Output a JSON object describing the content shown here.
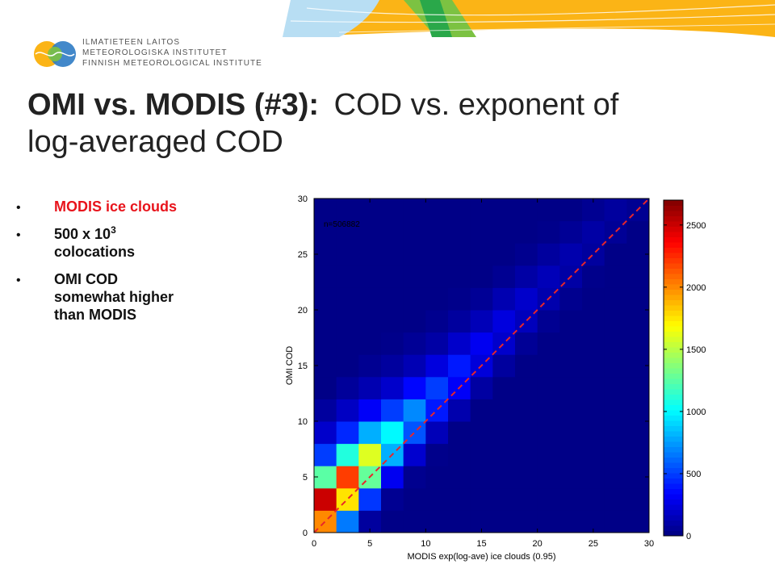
{
  "header": {
    "institute_lines": [
      "ILMATIETEEN LAITOS",
      "METEOROLOGISKA INSTITUTET",
      "FINNISH METEOROLOGICAL INSTITUTE"
    ]
  },
  "title": {
    "bold": "OMI vs. MODIS (#3):",
    "lines": [
      "COD vs. exponent of",
      "log-averaged COD"
    ]
  },
  "bullets": [
    {
      "lines": [
        "MODIS ice clouds"
      ],
      "color": "#e8141c"
    },
    {
      "text": "500 x 10",
      "sup": "3",
      "lines": [
        "colocations"
      ]
    },
    {
      "lines": [
        "OMI COD",
        "somewhat higher",
        "than MODIS"
      ]
    }
  ],
  "chart_data": {
    "type": "heatmap",
    "xlabel": "MODIS exp(log-ave) ice clouds (0.95)",
    "ylabel": "OMI COD",
    "annotation": "n=506882",
    "xlim": [
      0,
      30
    ],
    "ylim": [
      0,
      30
    ],
    "xticks": [
      0,
      5,
      10,
      15,
      20,
      25,
      30
    ],
    "yticks": [
      0,
      5,
      10,
      15,
      20,
      25,
      30
    ],
    "xbins": [
      0,
      2,
      4,
      6,
      8,
      10,
      12,
      14,
      16,
      18,
      20,
      22,
      24,
      26,
      28,
      30
    ],
    "ybins": [
      0,
      2,
      4,
      6,
      8,
      10,
      12,
      14,
      16,
      18,
      20,
      22,
      24,
      26,
      28,
      30
    ],
    "colormap": "jet",
    "clim": [
      0,
      2700
    ],
    "cticks": [
      0,
      500,
      1000,
      1500,
      2000,
      2500
    ],
    "line": {
      "x": [
        0,
        30
      ],
      "y": [
        0,
        30
      ],
      "color": "#e8262a",
      "dashed": true
    },
    "values": [
      [
        2000,
        660,
        80,
        20,
        20,
        20,
        20,
        20,
        20,
        20,
        20,
        20,
        20,
        20,
        20
      ],
      [
        2500,
        1760,
        480,
        50,
        20,
        20,
        20,
        20,
        20,
        20,
        20,
        20,
        20,
        20,
        20
      ],
      [
        1250,
        2200,
        1280,
        300,
        40,
        20,
        20,
        20,
        20,
        20,
        20,
        20,
        20,
        20,
        20
      ],
      [
        500,
        1100,
        1600,
        800,
        210,
        30,
        20,
        20,
        20,
        20,
        20,
        20,
        20,
        20,
        20
      ],
      [
        200,
        440,
        800,
        1000,
        560,
        150,
        20,
        20,
        20,
        20,
        20,
        20,
        20,
        20,
        20
      ],
      [
        80,
        180,
        320,
        500,
        700,
        400,
        120,
        20,
        20,
        20,
        20,
        20,
        20,
        20,
        20
      ],
      [
        20,
        70,
        130,
        200,
        350,
        500,
        320,
        90,
        20,
        20,
        20,
        20,
        20,
        20,
        20
      ],
      [
        20,
        20,
        50,
        80,
        140,
        250,
        400,
        240,
        80,
        20,
        20,
        20,
        20,
        20,
        20
      ],
      [
        20,
        20,
        20,
        30,
        60,
        100,
        200,
        300,
        200,
        60,
        20,
        20,
        20,
        20,
        20
      ],
      [
        20,
        20,
        20,
        20,
        20,
        40,
        80,
        150,
        250,
        160,
        50,
        20,
        20,
        20,
        20
      ],
      [
        20,
        20,
        20,
        20,
        20,
        20,
        30,
        60,
        130,
        200,
        120,
        40,
        20,
        20,
        20
      ],
      [
        20,
        20,
        20,
        20,
        20,
        20,
        20,
        20,
        50,
        100,
        150,
        100,
        30,
        20,
        20
      ],
      [
        20,
        20,
        20,
        20,
        20,
        20,
        20,
        20,
        20,
        40,
        80,
        120,
        80,
        20,
        20
      ],
      [
        20,
        20,
        20,
        20,
        20,
        20,
        20,
        20,
        20,
        20,
        30,
        60,
        100,
        60,
        20
      ],
      [
        20,
        20,
        20,
        20,
        20,
        20,
        20,
        20,
        20,
        20,
        20,
        20,
        50,
        80,
        50
      ]
    ]
  }
}
